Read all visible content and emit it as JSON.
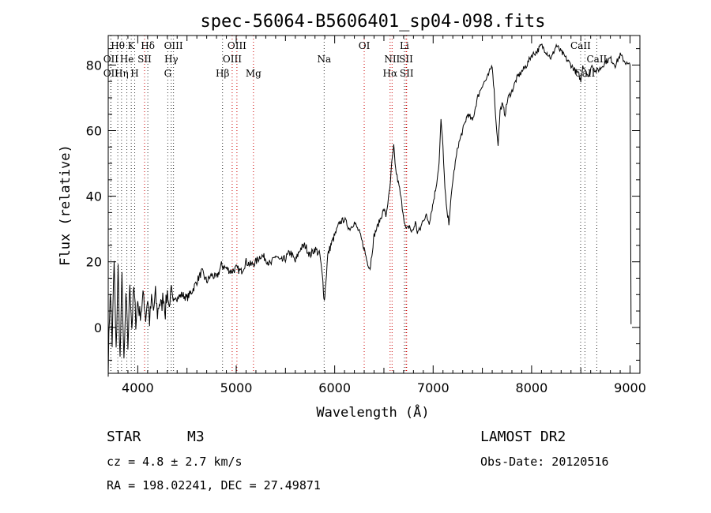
{
  "chart_data": {
    "type": "line",
    "title": "spec-56064-B5606401_sp04-098.fits",
    "xlabel": "Wavelength (Å)",
    "ylabel": "Flux (relative)",
    "xlim": [
      3700,
      9100
    ],
    "ylim": [
      -14,
      89
    ],
    "x_ticks": [
      4000,
      5000,
      6000,
      7000,
      8000,
      9000
    ],
    "y_ticks": [
      0,
      20,
      40,
      60,
      80
    ],
    "grid": false,
    "series": [
      {
        "color": "#000000",
        "x": [
          3700,
          3720,
          3740,
          3760,
          3780,
          3800,
          3820,
          3840,
          3860,
          3880,
          3900,
          3920,
          3940,
          3960,
          3980,
          4000,
          4020,
          4040,
          4060,
          4080,
          4100,
          4120,
          4140,
          4160,
          4180,
          4200,
          4220,
          4240,
          4260,
          4280,
          4300,
          4320,
          4340,
          4360,
          4380,
          4400,
          4450,
          4500,
          4550,
          4600,
          4650,
          4700,
          4750,
          4800,
          4850,
          4900,
          4950,
          5000,
          5050,
          5100,
          5150,
          5200,
          5250,
          5300,
          5350,
          5400,
          5450,
          5500,
          5550,
          5600,
          5650,
          5700,
          5750,
          5800,
          5850,
          5880,
          5895,
          5910,
          5930,
          5960,
          6000,
          6050,
          6100,
          6150,
          6200,
          6250,
          6300,
          6330,
          6360,
          6400,
          6450,
          6500,
          6520,
          6540,
          6560,
          6580,
          6600,
          6620,
          6640,
          6660,
          6680,
          6700,
          6720,
          6740,
          6760,
          6780,
          6800,
          6820,
          6840,
          6870,
          6900,
          6930,
          6960,
          7000,
          7030,
          7060,
          7080,
          7100,
          7120,
          7140,
          7160,
          7200,
          7250,
          7300,
          7350,
          7400,
          7450,
          7500,
          7550,
          7600,
          7620,
          7640,
          7660,
          7680,
          7700,
          7730,
          7760,
          7800,
          7850,
          7900,
          7950,
          8000,
          8050,
          8100,
          8150,
          8200,
          8250,
          8300,
          8350,
          8400,
          8450,
          8480,
          8500,
          8520,
          8540,
          8560,
          8580,
          8600,
          8620,
          8650,
          8700,
          8750,
          8800,
          8850,
          8900,
          8950,
          8980,
          9000,
          9010
        ],
        "y": [
          -12,
          12,
          -5,
          20,
          -8,
          18,
          -10,
          15,
          -12,
          10,
          -6,
          14,
          0,
          12,
          2,
          8,
          4,
          6,
          10,
          3,
          9,
          2,
          8,
          5,
          10,
          4,
          8,
          6,
          10,
          5,
          11,
          6,
          12,
          7,
          10,
          9,
          10,
          9,
          11,
          14,
          17,
          14,
          16,
          15,
          19,
          18,
          17,
          18,
          17,
          20,
          19,
          20,
          22,
          21,
          19,
          22,
          20,
          21,
          23,
          20,
          24,
          25,
          22,
          24,
          22,
          14,
          8,
          14,
          22,
          25,
          28,
          32,
          33,
          30,
          32,
          29,
          24,
          20,
          18,
          28,
          32,
          36,
          34,
          38,
          42,
          50,
          55,
          48,
          45,
          42,
          38,
          34,
          30,
          30,
          31,
          29,
          30,
          32,
          29,
          30,
          33,
          34,
          32,
          38,
          43,
          50,
          63,
          55,
          42,
          35,
          32,
          45,
          55,
          60,
          65,
          63,
          70,
          74,
          76,
          80,
          72,
          62,
          56,
          66,
          68,
          65,
          70,
          72,
          76,
          78,
          80,
          83,
          84,
          86,
          84,
          82,
          86,
          84,
          82,
          80,
          78,
          77,
          75,
          80,
          79,
          78,
          76,
          79,
          80,
          78,
          79,
          81,
          82,
          80,
          83,
          81,
          80,
          80,
          1
        ]
      }
    ],
    "spectral_lines": [
      {
        "label": "Hθ",
        "x": 3797,
        "row": 0,
        "color": "#333333"
      },
      {
        "label": "K",
        "x": 3934,
        "row": 0,
        "color": "#333333"
      },
      {
        "label": "Hδ",
        "x": 4102,
        "row": 0,
        "color": "#333333"
      },
      {
        "label": "OIII",
        "x": 4363,
        "row": 0,
        "color": "#333333"
      },
      {
        "label": "OIII",
        "x": 5007,
        "row": 0,
        "color": "#cc0000"
      },
      {
        "label": "OI",
        "x": 6300,
        "row": 0,
        "color": "#cc0000"
      },
      {
        "label": "Li",
        "x": 6708,
        "row": 0,
        "color": "#333333"
      },
      {
        "label": "CaII",
        "x": 8498,
        "row": 0,
        "color": "#333333"
      },
      {
        "label": "OII",
        "x": 3727,
        "row": 1,
        "color": "#333333"
      },
      {
        "label": "He",
        "x": 3889,
        "row": 1,
        "color": "#333333"
      },
      {
        "label": "SII",
        "x": 4069,
        "row": 1,
        "color": "#cc0000"
      },
      {
        "label": "Hγ",
        "x": 4340,
        "row": 1,
        "color": "#333333"
      },
      {
        "label": "OIII",
        "x": 4959,
        "row": 1,
        "color": "#cc0000"
      },
      {
        "label": "Na",
        "x": 5893,
        "row": 1,
        "color": "#333333"
      },
      {
        "label": "NII",
        "x": 6583,
        "row": 1,
        "color": "#cc0000"
      },
      {
        "label": "SII",
        "x": 6725,
        "row": 1,
        "color": "#cc0000"
      },
      {
        "label": "CaII",
        "x": 8662,
        "row": 1,
        "color": "#333333"
      },
      {
        "label": "OII",
        "x": 3727,
        "row": 2,
        "color": "#333333"
      },
      {
        "label": "Hη",
        "x": 3835,
        "row": 2,
        "color": "#333333"
      },
      {
        "label": "H",
        "x": 3969,
        "row": 2,
        "color": "#333333"
      },
      {
        "label": "G",
        "x": 4305,
        "row": 2,
        "color": "#333333"
      },
      {
        "label": "Hβ",
        "x": 4861,
        "row": 2,
        "color": "#333333"
      },
      {
        "label": "Mg",
        "x": 5175,
        "row": 2,
        "color": "#cc0000"
      },
      {
        "label": "Hα",
        "x": 6563,
        "row": 2,
        "color": "#cc0000"
      },
      {
        "label": "SII",
        "x": 6731,
        "row": 2,
        "color": "#cc0000"
      },
      {
        "label": "CaII",
        "x": 8542,
        "row": 2,
        "color": "#333333"
      }
    ]
  },
  "info": {
    "object_class": "STAR",
    "subclass": "M3",
    "survey": "LAMOST DR2",
    "redshift": "cz = 4.8 ± 2.7 km/s",
    "obs_date": "Obs-Date: 20120516",
    "coords": "RA = 198.02241, DEC =  27.49871"
  }
}
